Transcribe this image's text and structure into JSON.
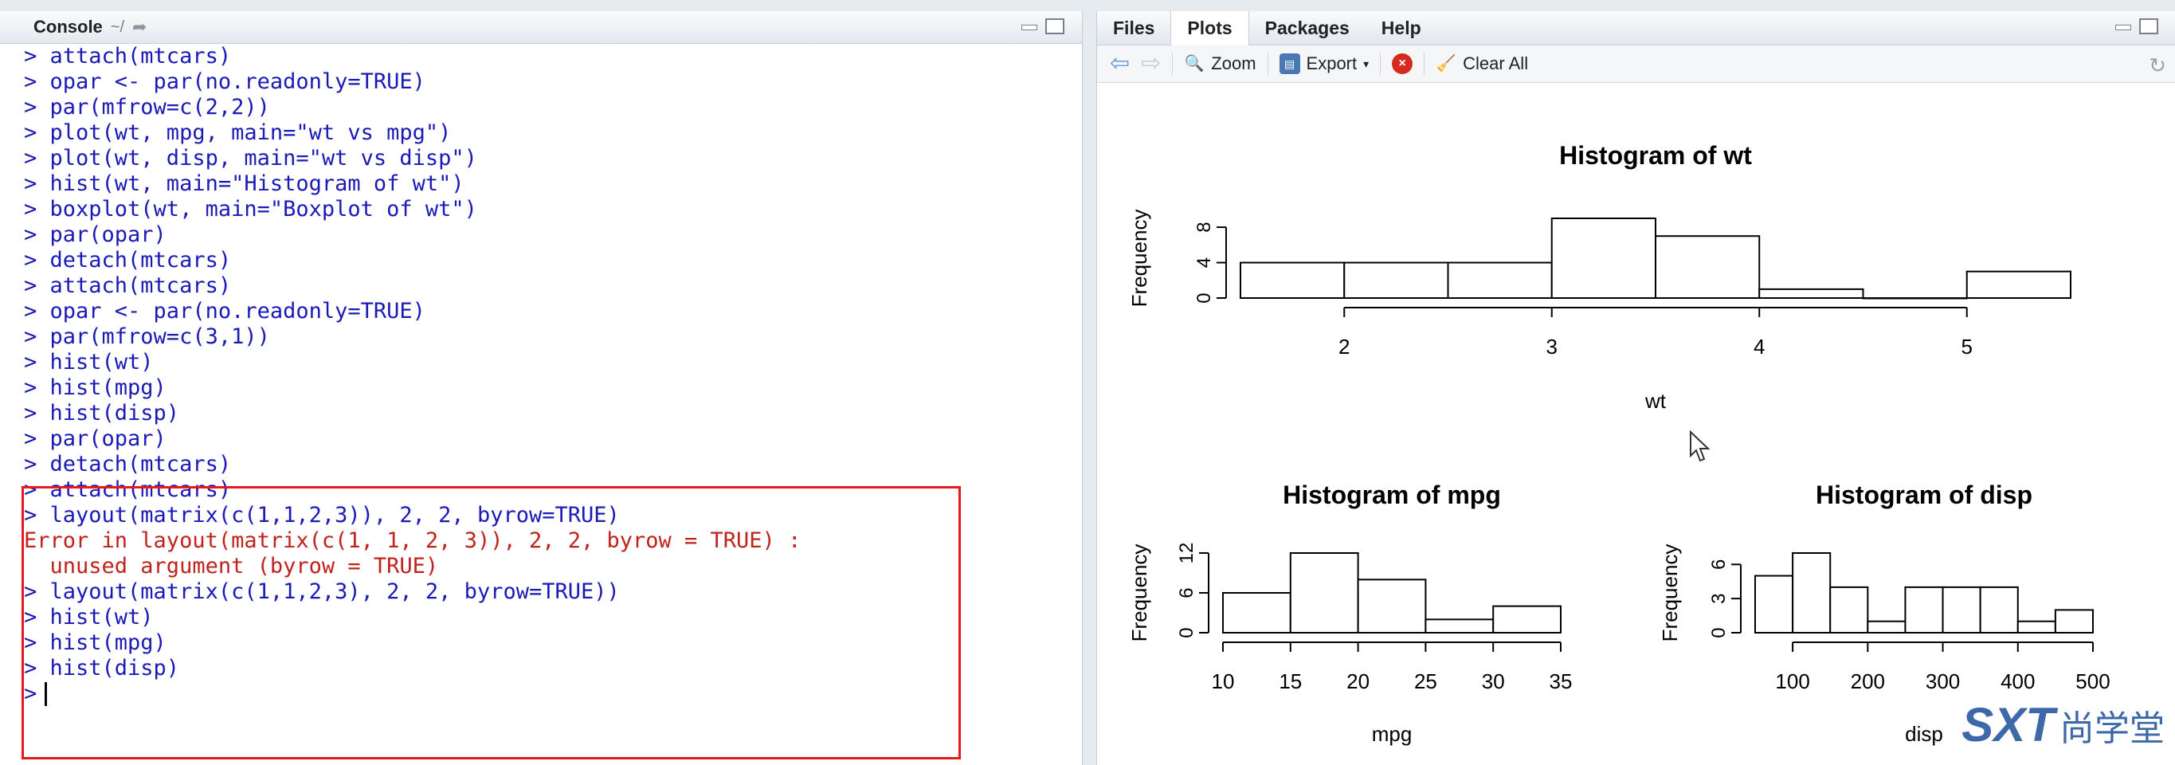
{
  "console": {
    "title": "Console",
    "path": "~/",
    "lines": [
      {
        "t": "> attach(mtcars)",
        "err": false
      },
      {
        "t": "> opar <- par(no.readonly=TRUE)",
        "err": false
      },
      {
        "t": "> par(mfrow=c(2,2))",
        "err": false
      },
      {
        "t": "> plot(wt, mpg, main=\"wt vs mpg\")",
        "err": false
      },
      {
        "t": "> plot(wt, disp, main=\"wt vs disp\")",
        "err": false
      },
      {
        "t": "> hist(wt, main=\"Histogram of wt\")",
        "err": false
      },
      {
        "t": "> boxplot(wt, main=\"Boxplot of wt\")",
        "err": false
      },
      {
        "t": "> par(opar)",
        "err": false
      },
      {
        "t": "> detach(mtcars)",
        "err": false
      },
      {
        "t": "> attach(mtcars)",
        "err": false
      },
      {
        "t": "> opar <- par(no.readonly=TRUE)",
        "err": false
      },
      {
        "t": "> par(mfrow=c(3,1))",
        "err": false
      },
      {
        "t": "> hist(wt)",
        "err": false
      },
      {
        "t": "> hist(mpg)",
        "err": false
      },
      {
        "t": "> hist(disp)",
        "err": false
      },
      {
        "t": "> par(opar)",
        "err": false
      },
      {
        "t": "> detach(mtcars)",
        "err": false
      },
      {
        "t": "> attach(mtcars)",
        "err": false
      },
      {
        "t": "> layout(matrix(c(1,1,2,3)), 2, 2, byrow=TRUE)",
        "err": false
      },
      {
        "t": "Error in layout(matrix(c(1, 1, 2, 3)), 2, 2, byrow = TRUE) :",
        "err": true
      },
      {
        "t": "  unused argument (byrow = TRUE)",
        "err": true
      },
      {
        "t": "> layout(matrix(c(1,1,2,3), 2, 2, byrow=TRUE))",
        "err": false
      },
      {
        "t": "> hist(wt)",
        "err": false
      },
      {
        "t": "> hist(mpg)",
        "err": false
      },
      {
        "t": "> hist(disp)",
        "err": false
      }
    ],
    "prompt": ">"
  },
  "plots_pane": {
    "tabs": [
      "Files",
      "Plots",
      "Packages",
      "Help"
    ],
    "active_tab": "Plots",
    "toolbar": {
      "zoom": "Zoom",
      "export": "Export",
      "clear_all": "Clear All"
    }
  },
  "chart_data": [
    {
      "type": "bar",
      "title": "Histogram of wt",
      "xlabel": "wt",
      "ylabel": "Frequency",
      "bin_edges": [
        1.5,
        2.0,
        2.5,
        3.0,
        3.5,
        4.0,
        4.5,
        5.0,
        5.5
      ],
      "values": [
        4,
        4,
        4,
        9,
        7,
        1,
        0,
        3
      ],
      "xticks": [
        2,
        3,
        4,
        5
      ],
      "yticks": [
        0,
        4,
        8
      ],
      "xlim": [
        1.5,
        5.5
      ],
      "ylim": [
        0,
        9
      ]
    },
    {
      "type": "bar",
      "title": "Histogram of mpg",
      "xlabel": "mpg",
      "ylabel": "Frequency",
      "bin_edges": [
        10,
        15,
        20,
        25,
        30,
        35
      ],
      "values": [
        6,
        12,
        8,
        2,
        4
      ],
      "xticks": [
        10,
        15,
        20,
        25,
        30,
        35
      ],
      "yticks": [
        0,
        6,
        12
      ],
      "xlim": [
        10,
        35
      ],
      "ylim": [
        0,
        12
      ]
    },
    {
      "type": "bar",
      "title": "Histogram of disp",
      "xlabel": "disp",
      "ylabel": "Frequency",
      "bin_edges": [
        50,
        100,
        150,
        200,
        250,
        300,
        350,
        400,
        450,
        500
      ],
      "values": [
        5,
        7,
        4,
        1,
        4,
        4,
        4,
        1,
        2
      ],
      "xticks": [
        100,
        200,
        300,
        400,
        500
      ],
      "yticks": [
        0,
        3,
        6
      ],
      "xlim": [
        50,
        500
      ],
      "ylim": [
        0,
        7
      ]
    }
  ],
  "watermark": {
    "logo": "SXT",
    "text": "尚学堂"
  },
  "colors": {
    "console_text": "#1a1ab8",
    "error_text": "#c0221c",
    "highlight_border": "#e8191c"
  }
}
